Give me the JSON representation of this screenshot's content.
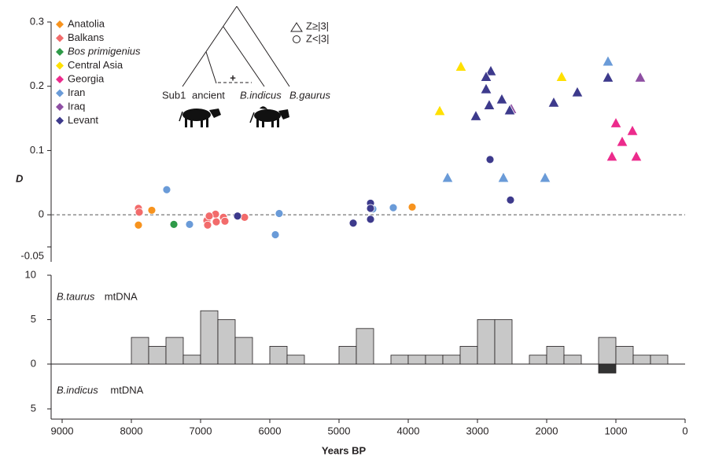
{
  "chart_data": [
    {
      "type": "scatter",
      "y_label": "D",
      "xlim": [
        9000,
        0
      ],
      "ylim": [
        -0.05,
        0.3
      ],
      "yticks": [
        -0.05,
        0,
        0.1,
        0.2,
        0.3
      ],
      "hline": 0,
      "legend": "upper left",
      "annotations": [
        "Z≥|3|",
        "Z<|3|"
      ],
      "inset_labels": [
        "Sub1",
        "ancient",
        "B.indicus",
        "B.gaurus",
        "+"
      ],
      "series": [
        {
          "name": "Anatolia",
          "color": "#f7931e",
          "x": [
            7898,
            7705,
            3943
          ],
          "values": [
            -0.016,
            0.007,
            0.012
          ],
          "marker": [
            "circle",
            "circle",
            "circle"
          ]
        },
        {
          "name": "Balkans",
          "color": "#f26b6b",
          "x": [
            7898,
            7886,
            6909,
            6898,
            6784,
            6773,
            6670,
            6648,
            6364,
            6875
          ],
          "values": [
            0.01,
            0.004,
            -0.009,
            -0.016,
            0.001,
            -0.011,
            -0.004,
            -0.01,
            -0.004,
            -0.002
          ],
          "marker": [
            "circle",
            "circle",
            "circle",
            "circle",
            "circle",
            "circle",
            "circle",
            "circle",
            "circle",
            "circle"
          ]
        },
        {
          "name": "Bos primigenius",
          "color": "#2e9a48",
          "x": [
            7386
          ],
          "values": [
            -0.015
          ],
          "marker": [
            "circle"
          ]
        },
        {
          "name": "Central Asia",
          "color": "#ffe000",
          "x": [
            3545,
            3239,
            1784
          ],
          "values": [
            0.162,
            0.231,
            0.215
          ],
          "marker": [
            "triangle",
            "triangle",
            "triangle"
          ]
        },
        {
          "name": "Georgia",
          "color": "#ec2b8c",
          "x": [
            1000,
            761,
            909,
            1057,
            705
          ],
          "values": [
            0.143,
            0.131,
            0.114,
            0.091,
            0.091
          ],
          "marker": [
            "triangle",
            "triangle",
            "triangle",
            "triangle",
            "triangle"
          ]
        },
        {
          "name": "Iran",
          "color": "#6a9bd8",
          "x": [
            7489,
            7159,
            5864,
            5920,
            4511,
            4216,
            3432,
            2625,
            2023,
            1114
          ],
          "values": [
            0.039,
            -0.015,
            0.002,
            -0.031,
            0.009,
            0.011,
            0.058,
            0.058,
            0.058,
            0.239
          ],
          "marker": [
            "circle",
            "circle",
            "circle",
            "circle",
            "circle",
            "circle",
            "triangle",
            "triangle",
            "triangle",
            "triangle"
          ]
        },
        {
          "name": "Iraq",
          "color": "#8e4fa3",
          "x": [
            648,
            2511
          ],
          "values": [
            0.214,
            0.165
          ],
          "marker": [
            "triangle",
            "triangle"
          ]
        },
        {
          "name": "Levant",
          "color": "#3d3a8c",
          "x": [
            6466,
            4795,
            4545,
            4545,
            4545,
            2818,
            2523,
            2807,
            2875,
            2875,
            2648,
            2830,
            3023,
            2534,
            1898,
            1557,
            1114
          ],
          "values": [
            -0.002,
            -0.013,
            0.018,
            0.01,
            -0.007,
            0.086,
            0.023,
            0.224,
            0.215,
            0.196,
            0.18,
            0.171,
            0.154,
            0.163,
            0.175,
            0.191,
            0.214
          ],
          "marker": [
            "circle",
            "circle",
            "circle",
            "circle",
            "circle",
            "circle",
            "circle",
            "triangle",
            "triangle",
            "triangle",
            "triangle",
            "triangle",
            "triangle",
            "triangle",
            "triangle",
            "triangle",
            "triangle"
          ]
        }
      ]
    },
    {
      "type": "histogram",
      "x_label": "Years BP",
      "xlim": [
        9000,
        0
      ],
      "xticks": [
        9000,
        8000,
        7000,
        6000,
        5000,
        4000,
        3000,
        2000,
        1000,
        0
      ],
      "ylim": [
        0,
        10
      ],
      "yticks": [
        0,
        5,
        10
      ],
      "y2lim": [
        0,
        5
      ],
      "y2ticks": [
        5
      ],
      "unit_label": "mtDNA",
      "bins": [
        8000,
        7750,
        7500,
        7250,
        7000,
        6750,
        6500,
        6250,
        6000,
        5750,
        5500,
        5250,
        5000,
        4750,
        4500,
        4250,
        4000,
        3750,
        3500,
        3250,
        3000,
        2750,
        2500,
        2250,
        2000,
        1750,
        1500,
        1250,
        1000,
        750,
        500,
        250
      ],
      "series": [
        {
          "name": "B.taurus",
          "color": "#c8c8c8",
          "values": [
            3,
            2,
            3,
            1,
            6,
            5,
            3,
            0,
            2,
            1,
            0,
            0,
            2,
            4,
            0,
            1,
            1,
            1,
            1,
            2,
            5,
            5,
            0,
            1,
            2,
            1,
            0,
            3,
            2,
            1,
            1
          ]
        },
        {
          "name": "B.indicus",
          "color": "#333333",
          "axis": "y2",
          "values": [
            0,
            0,
            0,
            0,
            0,
            0,
            0,
            0,
            0,
            0,
            0,
            0,
            0,
            0,
            0,
            0,
            0,
            0,
            0,
            0,
            0,
            0,
            0,
            0,
            0,
            0,
            0,
            1,
            0,
            0,
            0
          ]
        }
      ]
    }
  ]
}
